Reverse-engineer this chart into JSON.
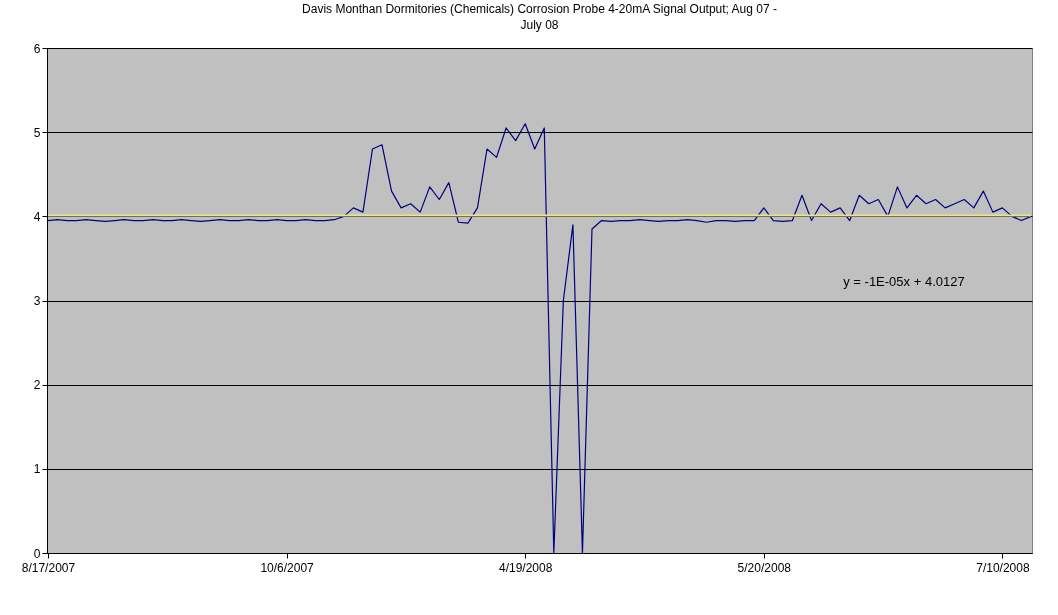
{
  "chart_data": {
    "type": "line",
    "title": "Davis Monthan Dormitories (Chemicals) Corrosion Probe 4-20mA Signal Output; Aug 07 - July 08",
    "categories": [
      "8/17/2007",
      null,
      null,
      null,
      null,
      null,
      null,
      null,
      null,
      null,
      null,
      null,
      null,
      null,
      null,
      null,
      null,
      null,
      null,
      null,
      null,
      null,
      null,
      null,
      null,
      "10/6/2007",
      null,
      null,
      null,
      null,
      null,
      null,
      null,
      null,
      null,
      null,
      null,
      null,
      null,
      null,
      null,
      null,
      null,
      null,
      null,
      null,
      null,
      null,
      null,
      null,
      "4/19/2008",
      null,
      null,
      null,
      null,
      null,
      null,
      null,
      null,
      null,
      null,
      null,
      null,
      null,
      null,
      null,
      null,
      null,
      null,
      null,
      null,
      null,
      null,
      null,
      null,
      "5/20/2008",
      null,
      null,
      null,
      null,
      null,
      null,
      null,
      null,
      null,
      null,
      null,
      null,
      null,
      null,
      null,
      null,
      null,
      null,
      null,
      null,
      null,
      null,
      null,
      null,
      "7/10/2008",
      null,
      null,
      null
    ],
    "series": [
      {
        "color": "#000080",
        "values": [
          3.95,
          3.96,
          3.95,
          3.95,
          3.96,
          3.95,
          3.94,
          3.95,
          3.96,
          3.95,
          3.95,
          3.96,
          3.95,
          3.95,
          3.96,
          3.95,
          3.94,
          3.95,
          3.96,
          3.95,
          3.95,
          3.96,
          3.95,
          3.95,
          3.96,
          3.95,
          3.95,
          3.96,
          3.95,
          3.95,
          3.96,
          4.0,
          4.1,
          4.05,
          4.8,
          4.85,
          4.3,
          4.1,
          4.15,
          4.05,
          4.35,
          4.2,
          4.4,
          3.93,
          3.92,
          4.1,
          4.8,
          4.7,
          5.05,
          4.9,
          5.1,
          4.8,
          5.05,
          0,
          3.0,
          3.9,
          0,
          3.85,
          3.95,
          3.94,
          3.95,
          3.95,
          3.96,
          3.95,
          3.94,
          3.95,
          3.95,
          3.96,
          3.95,
          3.93,
          3.95,
          3.95,
          3.94,
          3.95,
          3.95,
          4.1,
          3.95,
          3.94,
          3.95,
          4.25,
          3.95,
          4.15,
          4.05,
          4.1,
          3.95,
          4.25,
          4.15,
          4.2,
          4.0,
          4.35,
          4.1,
          4.25,
          4.15,
          4.2,
          4.1,
          4.15,
          4.2,
          4.1,
          4.3,
          4.05,
          4.1,
          4.0,
          3.95,
          4.0
        ]
      },
      {
        "type": "line",
        "color": "#e6e68c",
        "values": [
          4.01,
          null,
          null,
          null,
          null,
          null,
          null,
          null,
          null,
          null,
          null,
          null,
          null,
          null,
          null,
          null,
          null,
          null,
          null,
          null,
          null,
          null,
          null,
          null,
          null,
          null,
          null,
          null,
          null,
          null,
          null,
          null,
          null,
          null,
          null,
          null,
          null,
          null,
          null,
          null,
          null,
          null,
          null,
          null,
          null,
          null,
          null,
          null,
          null,
          null,
          null,
          null,
          null,
          null,
          null,
          null,
          null,
          null,
          null,
          null,
          null,
          null,
          null,
          null,
          null,
          null,
          null,
          null,
          null,
          null,
          null,
          null,
          null,
          null,
          null,
          null,
          null,
          null,
          null,
          null,
          null,
          null,
          null,
          null,
          null,
          null,
          null,
          null,
          null,
          null,
          null,
          null,
          null,
          null,
          null,
          null,
          null,
          null,
          null,
          null,
          null,
          null,
          null,
          4.01
        ]
      }
    ],
    "ylim": [
      0,
      6
    ],
    "yticks": [
      0,
      1,
      2,
      3,
      4,
      5,
      6
    ],
    "grid": "y",
    "annotations": [
      "y = -1E-05x + 4.0127"
    ]
  }
}
